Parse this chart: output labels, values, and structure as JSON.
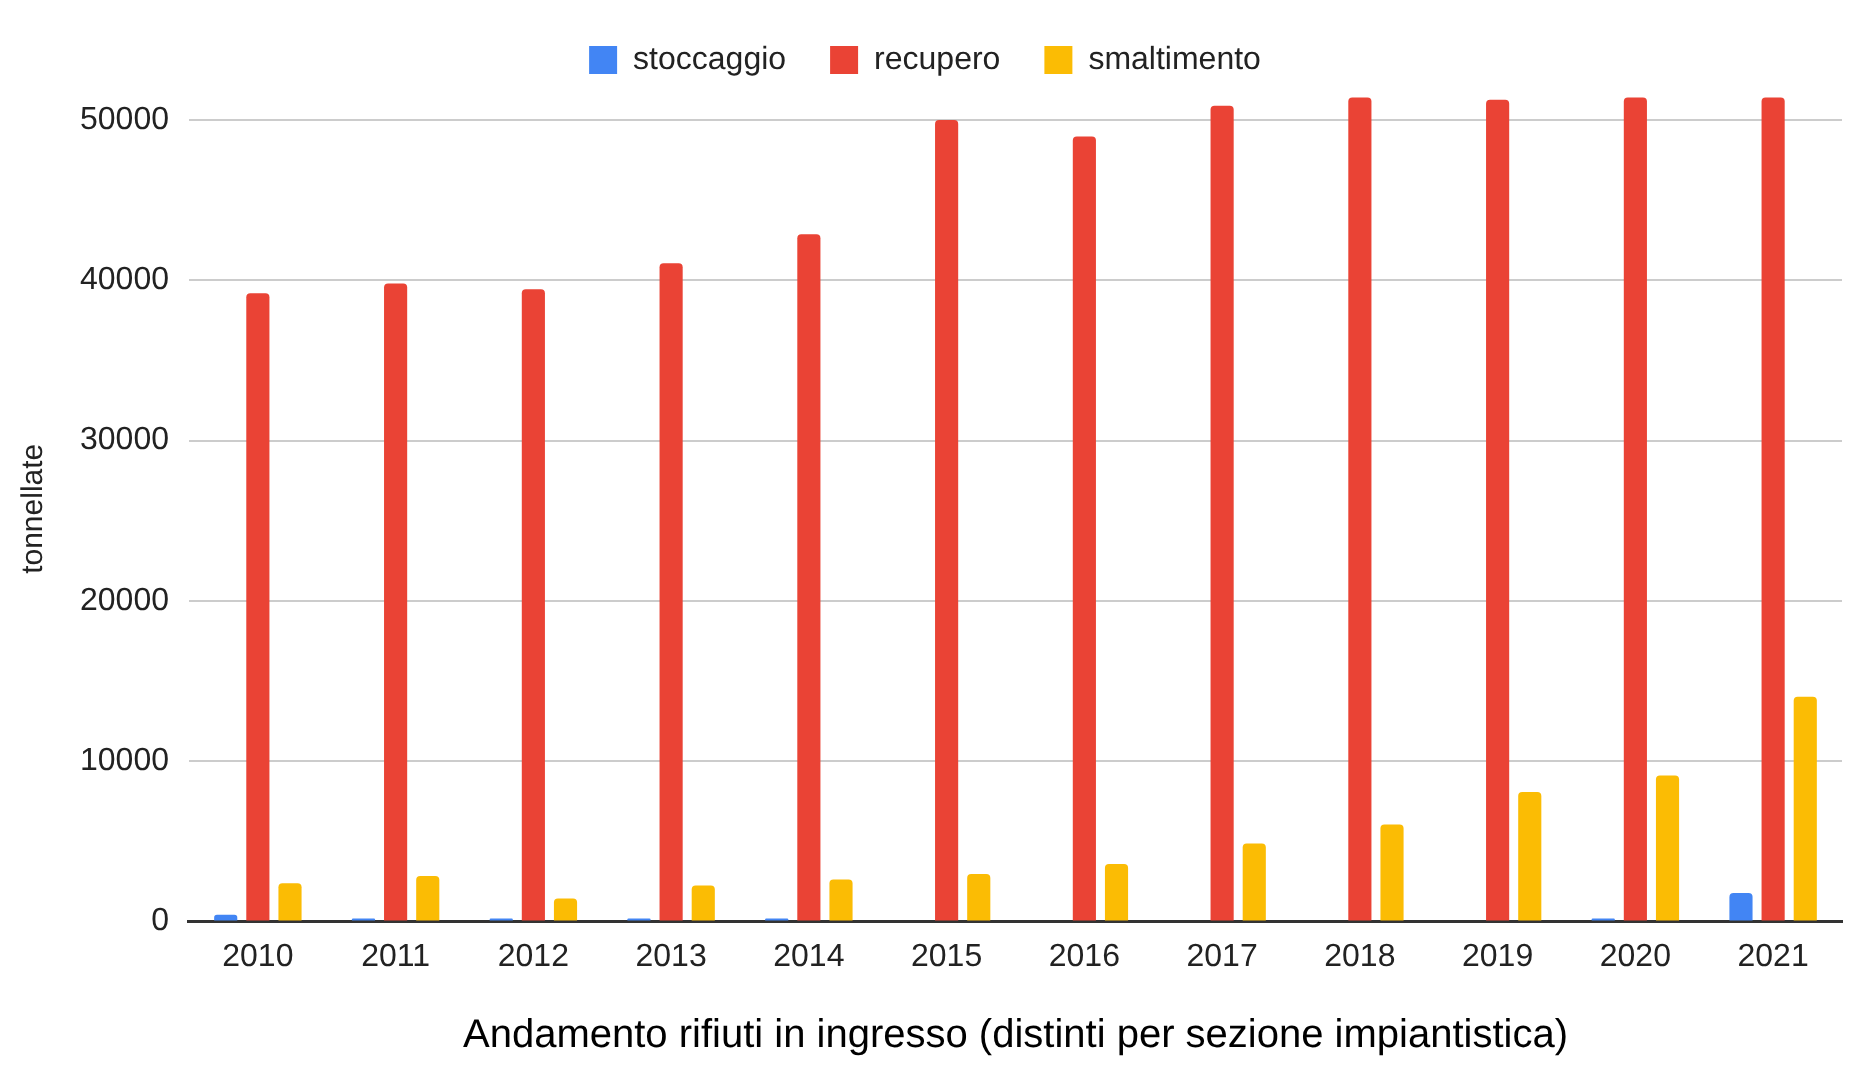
{
  "chart_data": {
    "type": "bar",
    "xlabel": "Andamento rifiuti in ingresso (distinti per sezione impiantistica)",
    "ylabel": "tonnellate",
    "categories": [
      "2010",
      "2011",
      "2012",
      "2013",
      "2014",
      "2015",
      "2016",
      "2017",
      "2018",
      "2019",
      "2020",
      "2021"
    ],
    "series": [
      {
        "name": "stoccaggio",
        "color": "#4285f4",
        "values": [
          420,
          200,
          200,
          200,
          200,
          0,
          0,
          0,
          0,
          0,
          200,
          1780
        ]
      },
      {
        "name": "recupero",
        "color": "#ea4335",
        "values": [
          39200,
          39800,
          39450,
          41060,
          42880,
          50000,
          48980,
          50890,
          51400,
          51270,
          51400,
          51400
        ]
      },
      {
        "name": "smaltimento",
        "color": "#fbbc04",
        "values": [
          2400,
          2840,
          1440,
          2250,
          2630,
          2970,
          3600,
          4870,
          6060,
          8090,
          9110,
          14030
        ]
      }
    ],
    "ylim": [
      0,
      51500
    ],
    "yticks": [
      0,
      10000,
      20000,
      30000,
      40000,
      50000
    ],
    "grid": "y",
    "legend": "top"
  }
}
